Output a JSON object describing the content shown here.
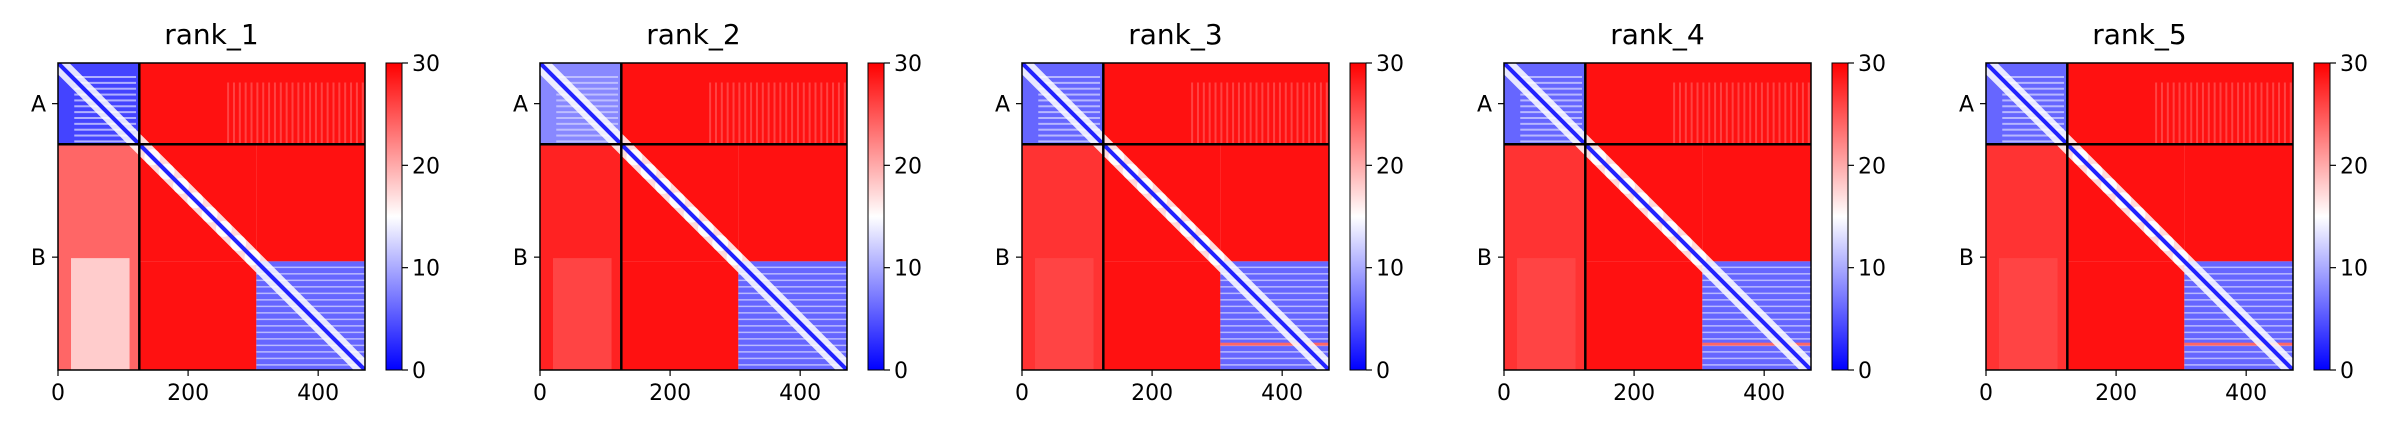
{
  "chart_data": [
    {
      "type": "heatmap",
      "title": "rank_1",
      "xlabel": "",
      "ylabel": "",
      "x_range": [
        0,
        472
      ],
      "y_range": [
        0,
        472
      ],
      "x_ticks": [
        0,
        200,
        400
      ],
      "chains": [
        {
          "label": "A",
          "start": 0,
          "end": 125
        },
        {
          "label": "B",
          "start": 125,
          "end": 472
        }
      ],
      "chain_boundary": 125,
      "colormap": {
        "low": "#0000ff",
        "mid": "#ffffff",
        "high": "#ff0000"
      },
      "colorbar": {
        "min": 0,
        "max": 30,
        "ticks": [
          0,
          10,
          20,
          30
        ]
      },
      "regions": [
        {
          "rows": "A",
          "cols": "A",
          "value": 4
        },
        {
          "rows": "A",
          "cols": "B",
          "value": 29
        },
        {
          "rows": "B",
          "cols": "A",
          "value": 24
        },
        {
          "rows": "B[0-305]",
          "cols": "B[0-305]",
          "value": 2,
          "note": "low values near diagonal, high elsewhere"
        },
        {
          "rows": "B[305-472]",
          "cols": "B[305-472]",
          "value": 6
        }
      ]
    },
    {
      "type": "heatmap",
      "title": "rank_2",
      "xlabel": "",
      "ylabel": "",
      "x_range": [
        0,
        472
      ],
      "y_range": [
        0,
        472
      ],
      "x_ticks": [
        0,
        200,
        400
      ],
      "chains": [
        {
          "label": "A",
          "start": 0,
          "end": 125
        },
        {
          "label": "B",
          "start": 125,
          "end": 472
        }
      ],
      "chain_boundary": 125,
      "colormap": {
        "low": "#0000ff",
        "mid": "#ffffff",
        "high": "#ff0000"
      },
      "colorbar": {
        "min": 0,
        "max": 30,
        "ticks": [
          0,
          10,
          20,
          30
        ]
      },
      "regions": [
        {
          "rows": "A",
          "cols": "A",
          "value": 8
        },
        {
          "rows": "A",
          "cols": "B",
          "value": 29
        },
        {
          "rows": "B",
          "cols": "A",
          "value": 28
        },
        {
          "rows": "B[0-305]",
          "cols": "B[0-305]",
          "value": 2,
          "note": "low values near diagonal, high elsewhere"
        },
        {
          "rows": "B[305-472]",
          "cols": "B[305-472]",
          "value": 6
        }
      ]
    },
    {
      "type": "heatmap",
      "title": "rank_3",
      "xlabel": "",
      "ylabel": "",
      "x_range": [
        0,
        472
      ],
      "y_range": [
        0,
        472
      ],
      "x_ticks": [
        0,
        200,
        400
      ],
      "chains": [
        {
          "label": "A",
          "start": 0,
          "end": 125
        },
        {
          "label": "B",
          "start": 125,
          "end": 472
        }
      ],
      "chain_boundary": 125,
      "colormap": {
        "low": "#0000ff",
        "mid": "#ffffff",
        "high": "#ff0000"
      },
      "colorbar": {
        "min": 0,
        "max": 30,
        "ticks": [
          0,
          10,
          20,
          30
        ]
      },
      "regions": [
        {
          "rows": "A",
          "cols": "A",
          "value": 6
        },
        {
          "rows": "A",
          "cols": "B",
          "value": 29
        },
        {
          "rows": "B",
          "cols": "A",
          "value": 27
        },
        {
          "rows": "B[0-305]",
          "cols": "B[0-305]",
          "value": 2,
          "note": "low values near diagonal, high elsewhere"
        },
        {
          "rows": "B[305-472]",
          "cols": "B[305-472]",
          "value": 6
        }
      ]
    },
    {
      "type": "heatmap",
      "title": "rank_4",
      "xlabel": "",
      "ylabel": "",
      "x_range": [
        0,
        472
      ],
      "y_range": [
        0,
        472
      ],
      "x_ticks": [
        0,
        200,
        400
      ],
      "chains": [
        {
          "label": "A",
          "start": 0,
          "end": 125
        },
        {
          "label": "B",
          "start": 125,
          "end": 472
        }
      ],
      "chain_boundary": 125,
      "colormap": {
        "low": "#0000ff",
        "mid": "#ffffff",
        "high": "#ff0000"
      },
      "colorbar": {
        "min": 0,
        "max": 30,
        "ticks": [
          0,
          10,
          20,
          30
        ]
      },
      "regions": [
        {
          "rows": "A",
          "cols": "A",
          "value": 6
        },
        {
          "rows": "A",
          "cols": "B",
          "value": 29
        },
        {
          "rows": "B",
          "cols": "A",
          "value": 27
        },
        {
          "rows": "B[0-305]",
          "cols": "B[0-305]",
          "value": 2,
          "note": "low values near diagonal, high elsewhere"
        },
        {
          "rows": "B[305-472]",
          "cols": "B[305-472]",
          "value": 6
        }
      ]
    },
    {
      "type": "heatmap",
      "title": "rank_5",
      "xlabel": "",
      "ylabel": "",
      "x_range": [
        0,
        472
      ],
      "y_range": [
        0,
        472
      ],
      "x_ticks": [
        0,
        200,
        400
      ],
      "chains": [
        {
          "label": "A",
          "start": 0,
          "end": 125
        },
        {
          "label": "B",
          "start": 125,
          "end": 472
        }
      ],
      "chain_boundary": 125,
      "colormap": {
        "low": "#0000ff",
        "mid": "#ffffff",
        "high": "#ff0000"
      },
      "colorbar": {
        "min": 0,
        "max": 30,
        "ticks": [
          0,
          10,
          20,
          30
        ]
      },
      "regions": [
        {
          "rows": "A",
          "cols": "A",
          "value": 6
        },
        {
          "rows": "A",
          "cols": "B",
          "value": 29
        },
        {
          "rows": "B",
          "cols": "A",
          "value": 27
        },
        {
          "rows": "B[0-305]",
          "cols": "B[0-305]",
          "value": 2,
          "note": "low values near diagonal, high elsewhere"
        },
        {
          "rows": "B[305-472]",
          "cols": "B[305-472]",
          "value": 6
        }
      ]
    }
  ]
}
